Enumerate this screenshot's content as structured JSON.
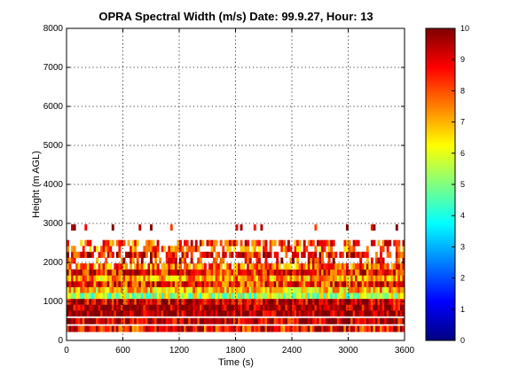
{
  "chart_data": {
    "type": "heatmap",
    "title": "OPRA Spectral Width (m/s)  Date: 99.9.27, Hour: 13",
    "xlabel": "Time (s)",
    "ylabel": "Height (m AGL)",
    "xlim": [
      0,
      3600
    ],
    "ylim": [
      0,
      8000
    ],
    "xticks": [
      "0",
      "600",
      "1200",
      "1800",
      "2400",
      "3000",
      "3600"
    ],
    "yticks": [
      "0",
      "1000",
      "2000",
      "3000",
      "4000",
      "5000",
      "6000",
      "7000",
      "8000"
    ],
    "grid": true,
    "colorbar": {
      "colormap": "jet",
      "range": [
        0,
        10
      ],
      "ticks": [
        "0",
        "1",
        "2",
        "3",
        "4",
        "5",
        "6",
        "7",
        "8",
        "9",
        "10"
      ]
    },
    "z_units": "m/s",
    "height_bins_m": [
      300,
      500,
      700,
      850,
      1000,
      1150,
      1300,
      1450,
      1600,
      1750,
      1900,
      2050,
      2200,
      2350,
      2500,
      2900
    ],
    "typical_width_by_bin": [
      8.6,
      9.4,
      9.8,
      9.7,
      9.3,
      5.5,
      6.8,
      8.4,
      7.2,
      8.6,
      7.8,
      8.5,
      8.8,
      7.8,
      8.2,
      9.7
    ],
    "coverage_by_bin": [
      1.0,
      1.0,
      1.0,
      1.0,
      1.0,
      1.0,
      1.0,
      1.0,
      1.0,
      1.0,
      0.9,
      0.45,
      0.75,
      0.55,
      0.6,
      0.08
    ]
  }
}
